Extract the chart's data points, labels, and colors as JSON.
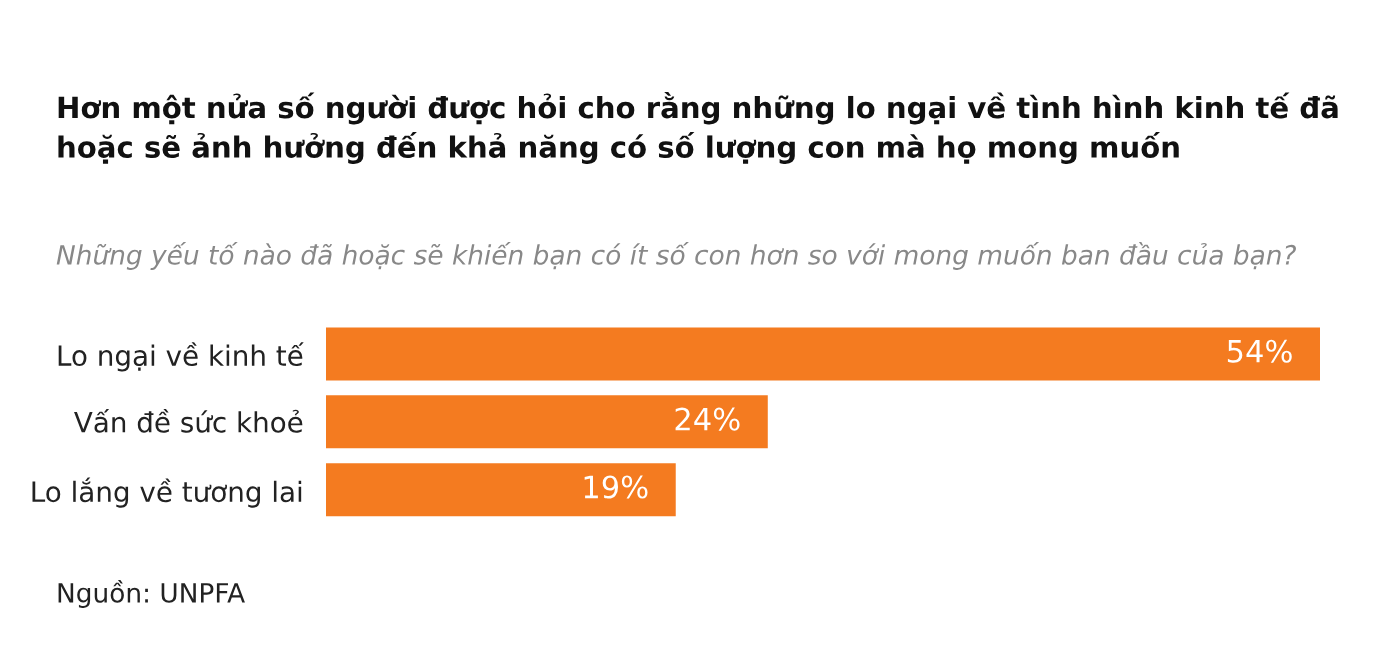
{
  "chart_data": {
    "type": "bar",
    "orientation": "horizontal",
    "title": "Hơn một nửa số người được hỏi cho rằng những lo ngại về tình hình kinh tế đã\nhoặc sẽ ảnh hưởng đến khả năng có số lượng con mà họ mong muốn",
    "subtitle": "Những yếu tố nào đã hoặc sẽ khiến bạn có ít số con hơn so với mong muốn ban đầu của bạn?",
    "categories": [
      "Lo ngại về kinh tế",
      "Vấn đề sức khoẻ",
      "Lo lắng về tương lai"
    ],
    "values": [
      54,
      24,
      19
    ],
    "value_labels": [
      "54%",
      "24%",
      "19%"
    ],
    "color": "#f47b20",
    "annotations": [
      "Nguồn: UNPFA"
    ],
    "grid": false,
    "legend": false
  }
}
